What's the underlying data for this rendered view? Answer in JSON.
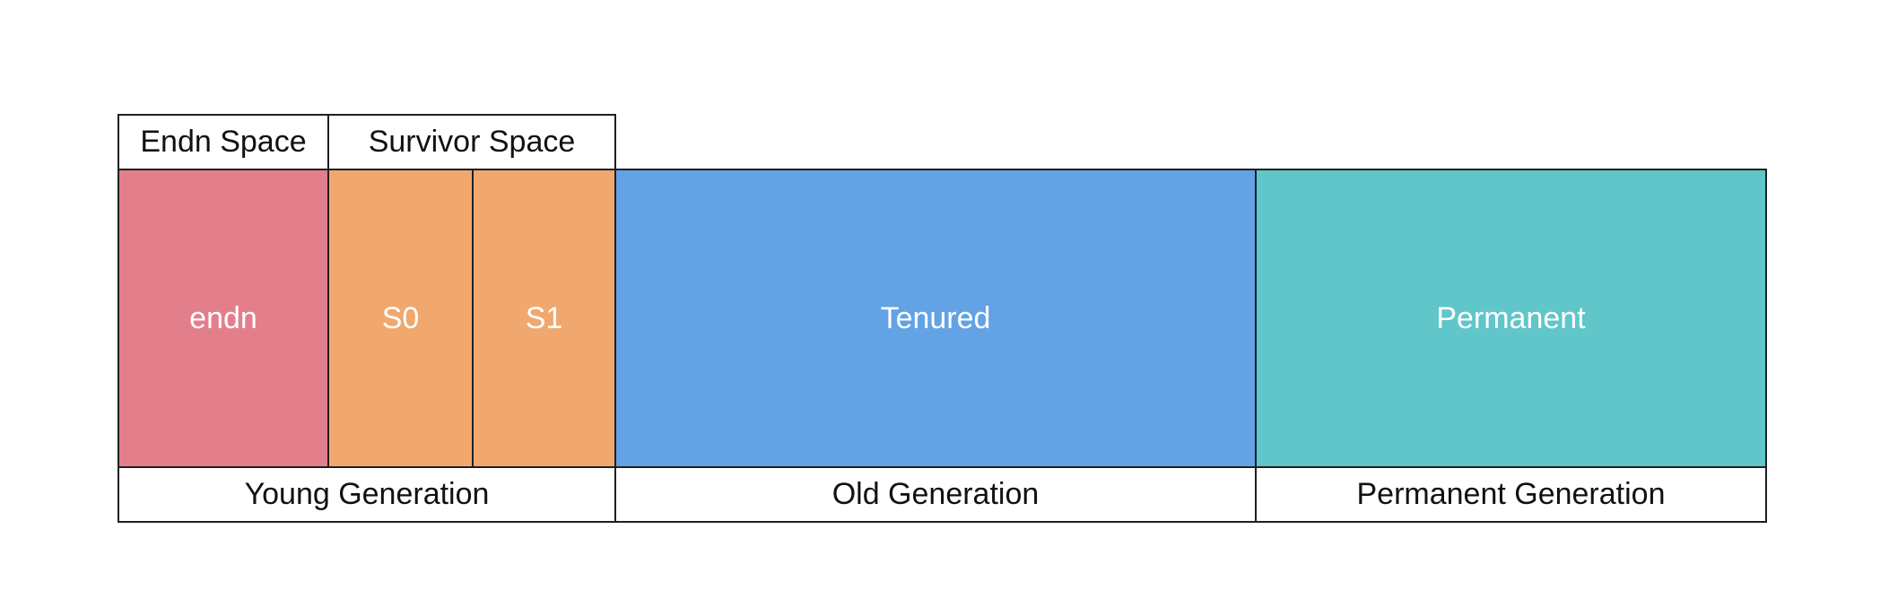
{
  "header": {
    "eden_space": "Endn Space",
    "survivor_space": "Survivor Space"
  },
  "regions": {
    "eden": {
      "label": "endn",
      "color": "#E37F8B"
    },
    "s0": {
      "label": "S0",
      "color": "#F0A86F"
    },
    "s1": {
      "label": "S1",
      "color": "#F0A86F"
    },
    "tenured": {
      "label": "Tenured",
      "color": "#63A2E5"
    },
    "permanent": {
      "label": "Permanent",
      "color": "#60C6CA"
    }
  },
  "footer": {
    "young_generation": "Young Generation",
    "old_generation": "Old Generation",
    "permanent_generation": "Permanent Generation"
  }
}
